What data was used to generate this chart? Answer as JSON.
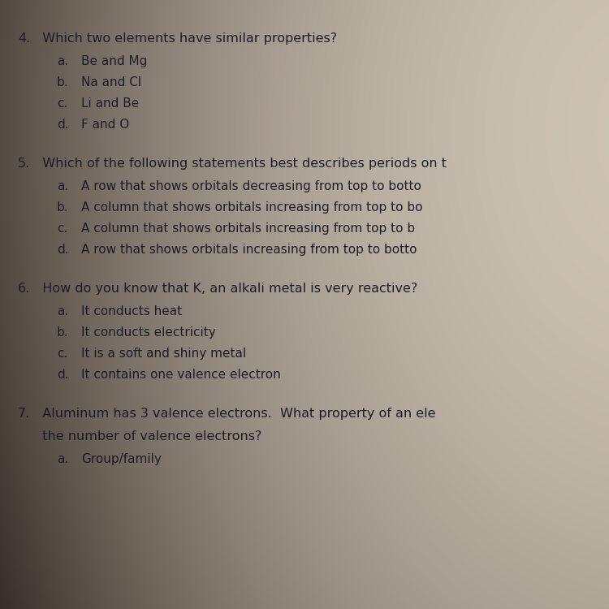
{
  "background_colors": {
    "top_left": "#6a6a6a",
    "top_right": "#9a9a9a",
    "center": "#c8bfb0",
    "bottom_left": "#7a7a7a",
    "bottom_right": "#b8b0a0"
  },
  "text_color": "#1a1a2a",
  "questions": [
    {
      "number": "4.",
      "question": "  Which two elements have similar properties?",
      "choices": [
        [
          "a.",
          "Be and Mg"
        ],
        [
          "b.",
          "Na and Cl"
        ],
        [
          "c.",
          "Li and Be"
        ],
        [
          "d.",
          "F and O"
        ]
      ]
    },
    {
      "number": "5.",
      "question": "  Which of the following statements best describes periods on t",
      "choices": [
        [
          "a.",
          "A row that shows orbitals decreasing from top to botto"
        ],
        [
          "b.",
          "A column that shows orbitals increasing from top to bo"
        ],
        [
          "c.",
          "A column that shows orbitals increasing from top to b"
        ],
        [
          "d.",
          "A row that shows orbitals increasing from top to botto"
        ]
      ]
    },
    {
      "number": "6.",
      "question": "  How do you know that K, an alkali metal is very reactive?",
      "choices": [
        [
          "a.",
          "It conducts heat"
        ],
        [
          "b.",
          "It conducts electricity"
        ],
        [
          "c.",
          "It is a soft and shiny metal"
        ],
        [
          "d.",
          "It contains one valence electron"
        ]
      ]
    },
    {
      "number": "7.",
      "question": "  Aluminum has 3 valence electrons.  What property of an ele",
      "question_line2": "  the number of valence electrons?",
      "choices": [
        [
          "a.",
          "Group/family"
        ]
      ]
    }
  ],
  "font_size_question": 11.5,
  "font_size_choice": 11.0,
  "font_size_number": 11.5,
  "figsize": [
    7.5,
    7.5
  ],
  "dpi": 100
}
